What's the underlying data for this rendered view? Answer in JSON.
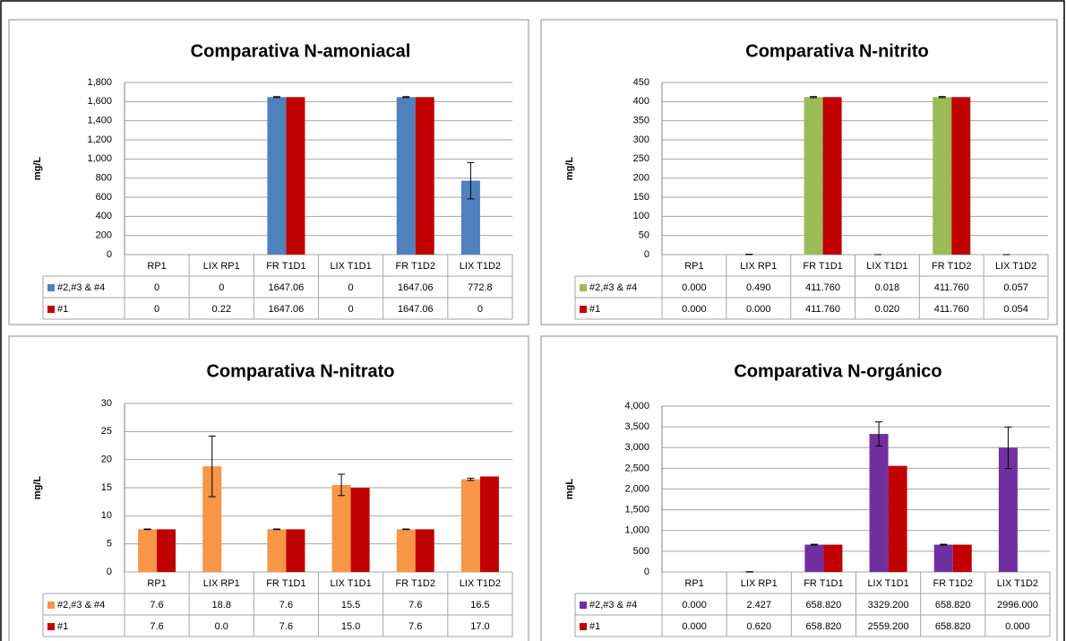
{
  "chart_data": [
    {
      "type": "bar",
      "title": "Comparativa N-amoniacal",
      "y_label": "mg/L",
      "categories": [
        "RP1",
        "LIX RP1",
        "FR T1D1",
        "LIX T1D1",
        "FR T1D2",
        "LIX T1D2"
      ],
      "series": [
        {
          "name": "#2,#3 & #4",
          "color": "#4f81bd",
          "values": [
            0,
            0,
            1647.06,
            0,
            1647.06,
            772.8
          ],
          "errors": [
            0,
            0,
            5,
            0,
            5,
            190
          ]
        },
        {
          "name": "#1",
          "color": "#c00000",
          "values": [
            0,
            0.22,
            1647.06,
            0,
            1647.06,
            0
          ],
          "errors": [
            0,
            0,
            0,
            0,
            0,
            0
          ]
        }
      ],
      "ylim": [
        0,
        1800
      ],
      "yticks": [
        0,
        200,
        400,
        600,
        800,
        {
          "value": 1000,
          "label": "1,000"
        },
        {
          "value": 1200,
          "label": "1,200"
        },
        {
          "value": 1400,
          "label": "1,400"
        },
        {
          "value": 1600,
          "label": "1,600"
        },
        {
          "value": 1800,
          "label": "1,800"
        }
      ],
      "grid": true
    },
    {
      "type": "bar",
      "title": "Comparativa N-nitrito",
      "y_label": "mg/L",
      "categories": [
        "RP1",
        "LIX RP1",
        "FR T1D1",
        "LIX T1D1",
        "FR T1D2",
        "LIX T1D2"
      ],
      "series": [
        {
          "name": "#2,#3 & #4",
          "color": "#9bbb59",
          "values": [
            0,
            0.49,
            411.76,
            0.018,
            411.76,
            0.057
          ],
          "value_labels": [
            "0.000",
            "0.490",
            "411.760",
            "0.018",
            "411.760",
            "0.057"
          ],
          "errors": [
            0,
            0.5,
            1.5,
            0.02,
            1.5,
            0.05
          ]
        },
        {
          "name": "#1",
          "color": "#c00000",
          "values": [
            0,
            0,
            411.76,
            0.02,
            411.76,
            0.054
          ],
          "value_labels": [
            "0.000",
            "0.000",
            "411.760",
            "0.020",
            "411.760",
            "0.054"
          ],
          "errors": [
            0,
            0,
            0,
            0,
            0,
            0
          ]
        }
      ],
      "ylim": [
        0,
        450
      ],
      "yticks": [
        0,
        50,
        100,
        150,
        200,
        250,
        300,
        350,
        400,
        450
      ],
      "grid": true
    },
    {
      "type": "bar",
      "title": "Comparativa N-nitrato",
      "y_label": "mg/L",
      "categories": [
        "RP1",
        "LIX RP1",
        "FR T1D1",
        "LIX T1D1",
        "FR T1D2",
        "LIX T1D2"
      ],
      "series": [
        {
          "name": "#2,#3 & #4",
          "color": "#f79646",
          "values": [
            7.6,
            18.8,
            7.6,
            15.5,
            7.6,
            16.5
          ],
          "errors": [
            0.05,
            5.4,
            0.05,
            1.9,
            0.05,
            0.2
          ]
        },
        {
          "name": "#1",
          "color": "#c00000",
          "values": [
            7.6,
            0,
            7.6,
            15,
            7.6,
            17
          ],
          "value_labels": [
            "7.6",
            "0.0",
            "7.6",
            "15.0",
            "7.6",
            "17.0"
          ],
          "errors": [
            0,
            0,
            0,
            0,
            0,
            0
          ]
        }
      ],
      "ylim": [
        0,
        30
      ],
      "yticks": [
        0,
        5,
        10,
        15,
        20,
        25,
        30
      ],
      "grid": true
    },
    {
      "type": "bar",
      "title": "Comparativa N-orgánico",
      "y_label": "mgL",
      "categories": [
        "RP1",
        "LIX RP1",
        "FR T1D1",
        "LIX T1D1",
        "FR T1D2",
        "LIX T1D2"
      ],
      "series": [
        {
          "name": "#2,#3 & #4",
          "color": "#7030a0",
          "values": [
            0,
            2.427,
            658.82,
            3329.2,
            658.82,
            2996
          ],
          "value_labels": [
            "0.000",
            "2.427",
            "658.820",
            "3329.200",
            "658.820",
            "2996.000"
          ],
          "errors": [
            0,
            5,
            10,
            290,
            10,
            500
          ]
        },
        {
          "name": "#1",
          "color": "#c00000",
          "values": [
            0,
            0.62,
            658.82,
            2559.2,
            658.82,
            0
          ],
          "value_labels": [
            "0.000",
            "0.620",
            "658.820",
            "2559.200",
            "658.820",
            "0.000"
          ],
          "errors": [
            0,
            0,
            0,
            0,
            0,
            0
          ]
        }
      ],
      "ylim": [
        0,
        4000
      ],
      "yticks": [
        0,
        500,
        {
          "value": 1000,
          "label": "1,000"
        },
        {
          "value": 1500,
          "label": "1,500"
        },
        {
          "value": 2000,
          "label": "2,000"
        },
        {
          "value": 2500,
          "label": "2,500"
        },
        {
          "value": 3000,
          "label": "3,000"
        },
        {
          "value": 3500,
          "label": "3,500"
        },
        {
          "value": 4000,
          "label": "4,000"
        }
      ],
      "grid": true
    }
  ]
}
